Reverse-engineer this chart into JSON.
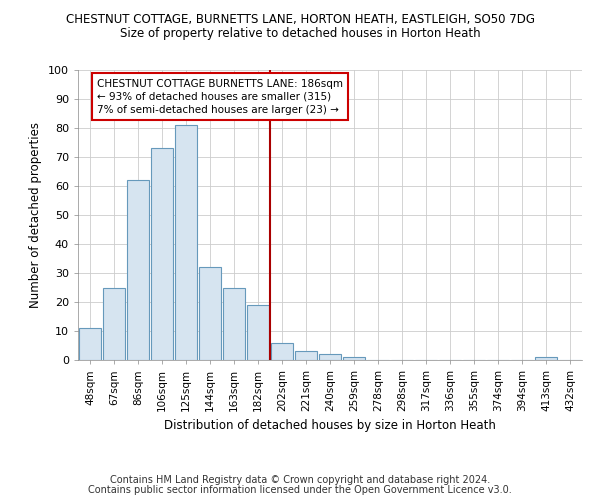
{
  "title": "CHESTNUT COTTAGE, BURNETTS LANE, HORTON HEATH, EASTLEIGH, SO50 7DG",
  "subtitle": "Size of property relative to detached houses in Horton Heath",
  "xlabel": "Distribution of detached houses by size in Horton Heath",
  "ylabel": "Number of detached properties",
  "bar_labels": [
    "48sqm",
    "67sqm",
    "86sqm",
    "106sqm",
    "125sqm",
    "144sqm",
    "163sqm",
    "182sqm",
    "202sqm",
    "221sqm",
    "240sqm",
    "259sqm",
    "278sqm",
    "298sqm",
    "317sqm",
    "336sqm",
    "355sqm",
    "374sqm",
    "394sqm",
    "413sqm",
    "432sqm"
  ],
  "bar_values": [
    11,
    25,
    62,
    73,
    81,
    32,
    25,
    19,
    6,
    3,
    2,
    1,
    0,
    0,
    0,
    0,
    0,
    0,
    0,
    1,
    0
  ],
  "bar_color": "#d6e4f0",
  "bar_edgecolor": "#6699bb",
  "vline_x": 7.5,
  "vline_color": "#aa0000",
  "annotation_text": "CHESTNUT COTTAGE BURNETTS LANE: 186sqm\n← 93% of detached houses are smaller (315)\n7% of semi-detached houses are larger (23) →",
  "annotation_box_color": "#ffffff",
  "annotation_box_edgecolor": "#cc0000",
  "ylim": [
    0,
    100
  ],
  "yticks": [
    0,
    10,
    20,
    30,
    40,
    50,
    60,
    70,
    80,
    90,
    100
  ],
  "footer1": "Contains HM Land Registry data © Crown copyright and database right 2024.",
  "footer2": "Contains public sector information licensed under the Open Government Licence v3.0.",
  "bg_color": "#ffffff",
  "plot_bg_color": "#ffffff",
  "grid_color": "#cccccc"
}
